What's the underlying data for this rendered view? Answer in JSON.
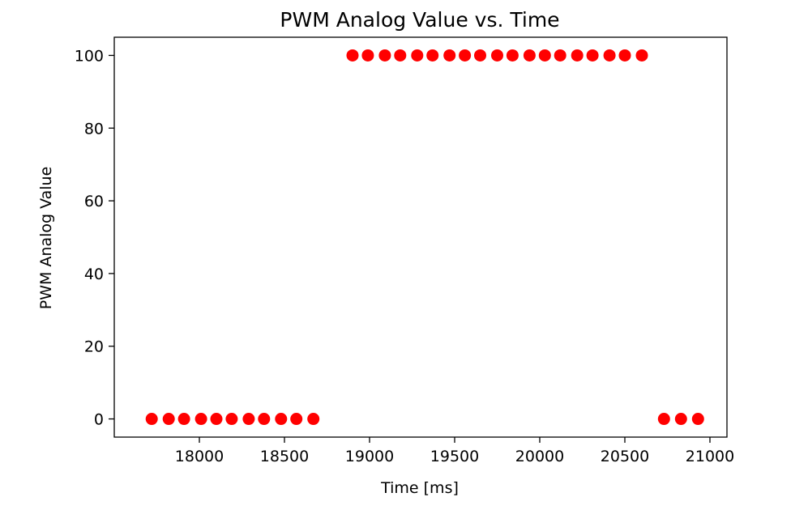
{
  "chart_data": {
    "type": "scatter",
    "title": "PWM Analog Value vs. Time",
    "xlabel": "Time [ms]",
    "ylabel": "PWM Analog Value",
    "xlim": [
      17500,
      21100
    ],
    "ylim": [
      -5,
      105
    ],
    "xticks": [
      18000,
      18500,
      19000,
      19500,
      20000,
      20500,
      21000
    ],
    "yticks": [
      0,
      20,
      40,
      60,
      80,
      100
    ],
    "grid": false,
    "marker_color": "#ff0000",
    "series": [
      {
        "x": [
          17720,
          17820,
          17910,
          18010,
          18100,
          18190,
          18290,
          18380,
          18480,
          18570,
          18670,
          18900,
          18990,
          19090,
          19180,
          19280,
          19370,
          19470,
          19560,
          19650,
          19750,
          19840,
          19940,
          20030,
          20120,
          20220,
          20310,
          20410,
          20500,
          20600,
          20730,
          20830,
          20930
        ],
        "y": [
          0,
          0,
          0,
          0,
          0,
          0,
          0,
          0,
          0,
          0,
          0,
          100,
          100,
          100,
          100,
          100,
          100,
          100,
          100,
          100,
          100,
          100,
          100,
          100,
          100,
          100,
          100,
          100,
          100,
          100,
          0,
          0,
          0
        ]
      }
    ]
  }
}
